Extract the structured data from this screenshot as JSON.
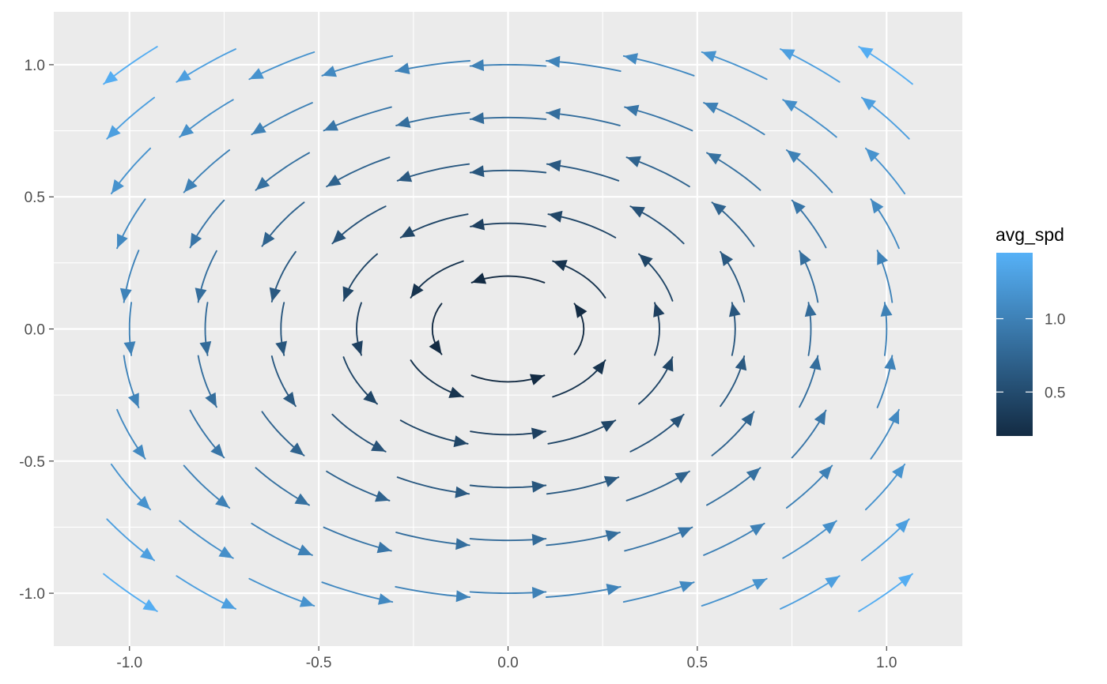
{
  "chart_data": {
    "type": "vector_field",
    "title": "",
    "xlabel": "",
    "ylabel": "",
    "xlim": [
      -1.2,
      1.2
    ],
    "ylim": [
      -1.2,
      1.2
    ],
    "x_ticks": [
      -1.0,
      -0.5,
      0.0,
      0.5,
      1.0
    ],
    "y_ticks": [
      -1.0,
      -0.5,
      0.0,
      0.5,
      1.0
    ],
    "x_tick_labels": [
      "-1.0",
      "-0.5",
      "0.0",
      "0.5",
      "1.0"
    ],
    "y_tick_labels": [
      "-1.0",
      "-0.5",
      "0.0",
      "0.5",
      "1.0"
    ],
    "grid": true,
    "field": {
      "u": "-y",
      "v": "x",
      "rotation": "counterclockwise"
    },
    "grid_points": {
      "x": [
        -1.0,
        -0.8,
        -0.6,
        -0.4,
        -0.2,
        0.0,
        0.2,
        0.4,
        0.6,
        0.8,
        1.0
      ],
      "y": [
        -1.0,
        -0.8,
        -0.6,
        -0.4,
        -0.2,
        0.0,
        0.2,
        0.4,
        0.6,
        0.8,
        1.0
      ]
    },
    "color_variable": "avg_spd",
    "legend": {
      "title": "avg_spd",
      "position": "right",
      "breaks": [
        1.0,
        0.5
      ],
      "break_labels": [
        "1.0",
        "0.5"
      ],
      "range": [
        0.2,
        1.45
      ]
    },
    "colors": {
      "low": "#132b43",
      "high": "#56b1f7"
    }
  },
  "theme": {
    "panel_background": "#ebebeb",
    "grid_color": "#ffffff"
  }
}
